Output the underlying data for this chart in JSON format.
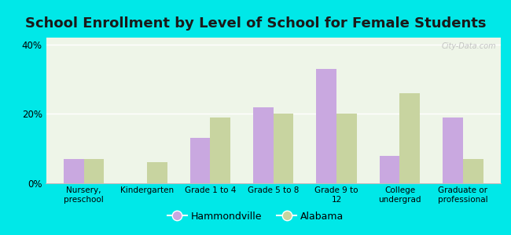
{
  "title": "School Enrollment by Level of School for Female Students",
  "categories": [
    "Nursery,\npreschool",
    "Kindergarten",
    "Grade 1 to 4",
    "Grade 5 to 8",
    "Grade 9 to\n12",
    "College\nundergrad",
    "Graduate or\nprofessional"
  ],
  "hammondville": [
    7,
    0,
    13,
    22,
    33,
    8,
    19
  ],
  "alabama": [
    7,
    6,
    19,
    20,
    20,
    26,
    7
  ],
  "hammondville_color": "#c9a8e0",
  "alabama_color": "#c8d4a0",
  "background_color": "#00e8e8",
  "plot_bg": "#eef5e8",
  "yticks": [
    0,
    20,
    40
  ],
  "ylim": [
    0,
    42
  ],
  "bar_width": 0.32,
  "title_fontsize": 13,
  "legend_label_hammondville": "Hammondville",
  "legend_label_alabama": "Alabama",
  "watermark": "City-Data.com"
}
